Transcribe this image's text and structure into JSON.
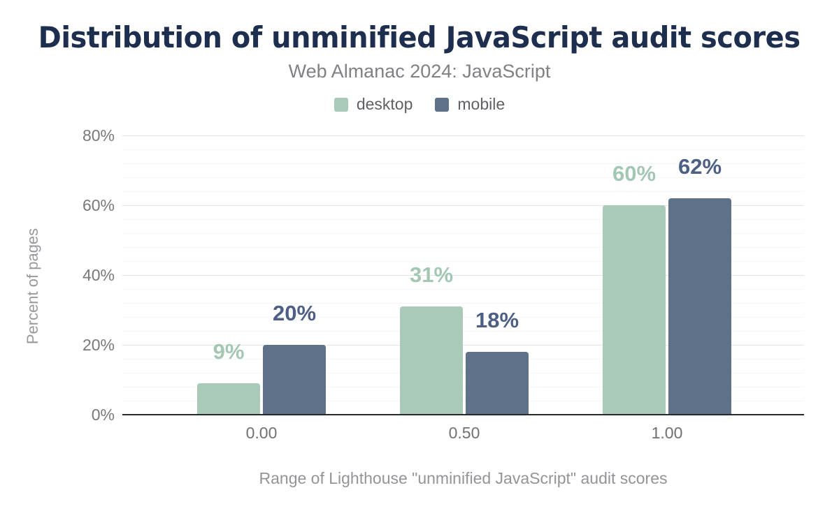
{
  "chart_data": {
    "type": "bar",
    "title": "Distribution of unminified JavaScript audit scores",
    "subtitle": "Web Almanac 2024: JavaScript",
    "xlabel": "Range of Lighthouse \"unminified JavaScript\" audit scores",
    "ylabel": "Percent of pages",
    "categories": [
      "0.00",
      "0.50",
      "1.00"
    ],
    "series": [
      {
        "name": "desktop",
        "color": "#a9cab9",
        "label_color": "#a4c7b4",
        "values": [
          9,
          31,
          60
        ],
        "labels": [
          "9%",
          "31%",
          "60%"
        ]
      },
      {
        "name": "mobile",
        "color": "#5f7089",
        "label_color": "#4d5f84",
        "values": [
          20,
          18,
          62
        ],
        "labels": [
          "20%",
          "18%",
          "62%"
        ]
      }
    ],
    "ylim": [
      0,
      80
    ],
    "yticks": [
      {
        "value": 0,
        "label": "0%"
      },
      {
        "value": 20,
        "label": "20%"
      },
      {
        "value": 40,
        "label": "40%"
      },
      {
        "value": 60,
        "label": "60%"
      },
      {
        "value": 80,
        "label": "80%"
      }
    ],
    "grid": {
      "minor_step": 4,
      "major_step": 20
    },
    "legend_position": "top",
    "title_color": "#1d2e4f"
  }
}
